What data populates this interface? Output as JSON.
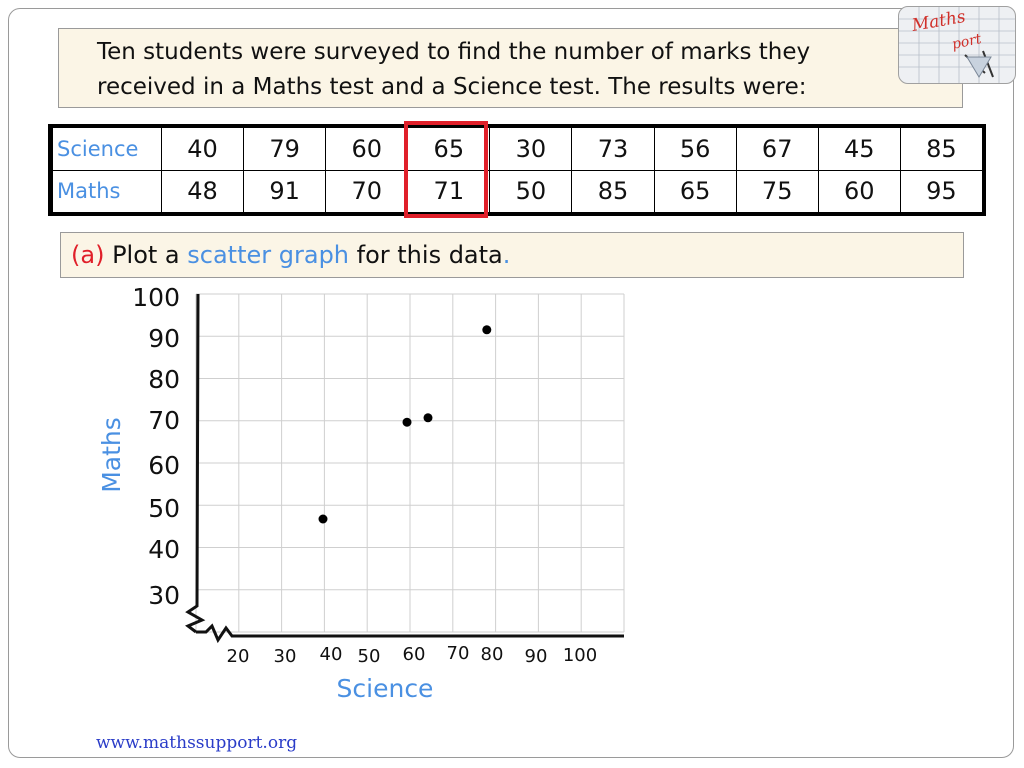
{
  "intro": {
    "line1": "Ten students were surveyed to find the number of marks they",
    "line2": "received in a Maths test and a Science test. The results were:"
  },
  "logo": {
    "text1": "Maths",
    "text2": "port"
  },
  "table": {
    "science_label": "Science",
    "maths_label": "Maths",
    "science": [
      "40",
      "79",
      "60",
      "65",
      "30",
      "73",
      "56",
      "67",
      "45",
      "85"
    ],
    "maths": [
      "48",
      "91",
      "70",
      "71",
      "50",
      "85",
      "65",
      "75",
      "60",
      "95"
    ],
    "highlight_column": 3,
    "highlight_color": "#e0202a"
  },
  "question": {
    "part": "(a)",
    "text_before": " Plot a ",
    "highlight": "scatter graph",
    "text_after": " for this data",
    "period": "."
  },
  "chart_data": {
    "type": "scatter",
    "xlabel": "Science",
    "ylabel": "Maths",
    "xticks": [
      "20",
      "30",
      "40",
      "50",
      "60",
      "70",
      "80",
      "90",
      "100"
    ],
    "yticks": [
      "30",
      "40",
      "50",
      "60",
      "70",
      "80",
      "90",
      "100"
    ],
    "xlim": [
      20,
      100
    ],
    "ylim": [
      30,
      100
    ],
    "axis_break": true,
    "grid": true,
    "points": [
      {
        "x": 40,
        "y": 48
      },
      {
        "x": 60,
        "y": 70
      },
      {
        "x": 65,
        "y": 71
      },
      {
        "x": 79,
        "y": 91
      }
    ],
    "label_color": "#4a90e2"
  },
  "footer": {
    "url": "www.mathssupport.org"
  }
}
